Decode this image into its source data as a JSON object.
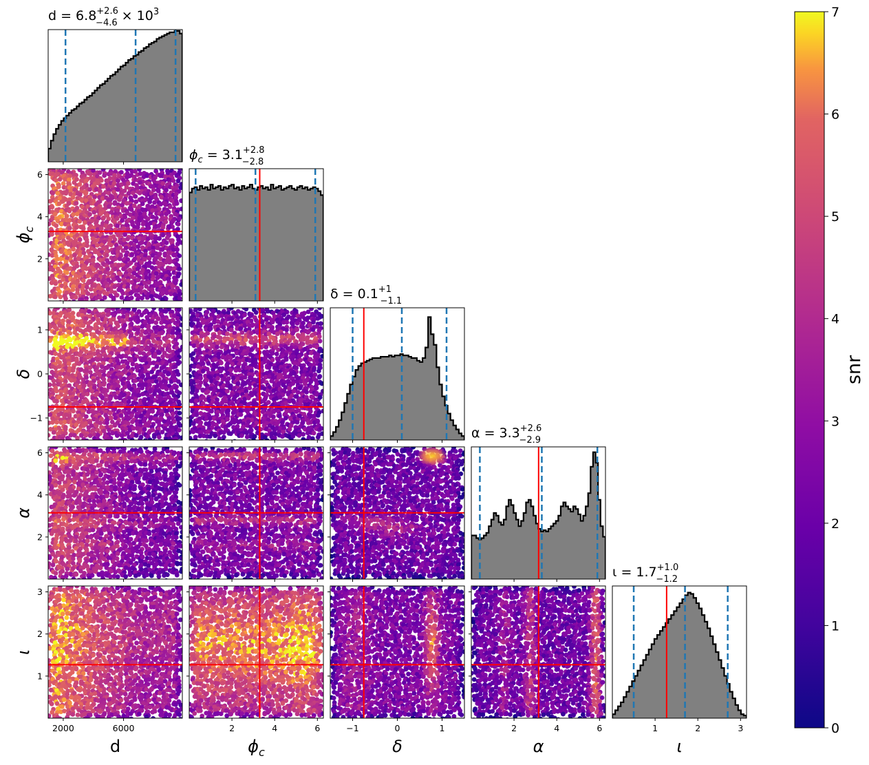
{
  "chart_data": {
    "type": "corner",
    "colorbar": {
      "label": "snr",
      "range": [
        0,
        7
      ],
      "ticks": [
        0,
        1,
        2,
        3,
        4,
        5,
        6,
        7
      ],
      "colormap": "plasma"
    },
    "parameters": [
      {
        "key": "d",
        "label": "d",
        "range": [
          1000,
          9900
        ],
        "ticks": [
          2000,
          6000
        ],
        "tick_labels": [
          "2000",
          "6000"
        ],
        "truth": null,
        "quantiles": [
          2150,
          6800,
          9450
        ],
        "title_main": "d = 6.8",
        "title_sup": "+2.6",
        "title_sub": "−4.6",
        "title_suffix": " × 10",
        "title_exp": "3"
      },
      {
        "key": "phi_c",
        "label": "ϕc",
        "label_main": "ϕ",
        "label_sub": "c",
        "range": [
          0,
          6.28
        ],
        "ticks": [
          2,
          4,
          6
        ],
        "tick_labels": [
          "2",
          "4",
          "6"
        ],
        "truth": 3.3,
        "quantiles": [
          0.3,
          3.1,
          5.9
        ],
        "title_main": "ϕ",
        "title_main_sub": "c",
        "title_value": " = 3.1",
        "title_sup": "+2.8",
        "title_sub": "−2.8"
      },
      {
        "key": "delta",
        "label": "δ",
        "range": [
          -1.5,
          1.5
        ],
        "ticks": [
          -1,
          0,
          1
        ],
        "tick_labels": [
          "−1",
          "0",
          "1"
        ],
        "truth": -0.75,
        "quantiles": [
          -1.0,
          0.1,
          1.1
        ],
        "title_main": "δ = 0.1",
        "title_sup": "+1",
        "title_sub": "−1.1"
      },
      {
        "key": "alpha",
        "label": "α",
        "range": [
          0,
          6.28
        ],
        "ticks": [
          2,
          4,
          6
        ],
        "tick_labels": [
          "2",
          "4",
          "6"
        ],
        "truth": 3.15,
        "quantiles": [
          0.4,
          3.3,
          5.9
        ],
        "title_main": "α = 3.3",
        "title_sup": "+2.6",
        "title_sub": "−2.9"
      },
      {
        "key": "iota",
        "label": "ι",
        "range": [
          0,
          3.14
        ],
        "ticks": [
          1,
          2,
          3
        ],
        "tick_labels": [
          "1",
          "2",
          "3"
        ],
        "truth": 1.27,
        "quantiles": [
          0.5,
          1.7,
          2.7
        ],
        "title_main": "ι = 1.7",
        "title_sup": "+1.0",
        "title_sub": "−1.2"
      }
    ],
    "marginal_histograms": {
      "d": [
        0.1,
        0.16,
        0.21,
        0.25,
        0.28,
        0.31,
        0.33,
        0.35,
        0.37,
        0.39,
        0.4,
        0.42,
        0.44,
        0.45,
        0.47,
        0.49,
        0.5,
        0.52,
        0.54,
        0.56,
        0.58,
        0.59,
        0.61,
        0.63,
        0.65,
        0.66,
        0.68,
        0.7,
        0.72,
        0.73,
        0.75,
        0.77,
        0.78,
        0.8,
        0.81,
        0.83,
        0.84,
        0.86,
        0.87,
        0.89,
        0.9,
        0.91,
        0.93,
        0.94,
        0.95,
        0.96,
        0.97,
        0.98,
        0.98,
        0.99,
        0.99,
        0.97
      ],
      "phi_c": [
        0.82,
        0.85,
        0.86,
        0.84,
        0.87,
        0.85,
        0.86,
        0.84,
        0.88,
        0.85,
        0.86,
        0.87,
        0.84,
        0.86,
        0.85,
        0.87,
        0.88,
        0.85,
        0.86,
        0.84,
        0.87,
        0.85,
        0.86,
        0.88,
        0.85,
        0.84,
        0.86,
        0.87,
        0.85,
        0.86,
        0.84,
        0.88,
        0.85,
        0.86,
        0.87,
        0.84,
        0.85,
        0.86,
        0.87,
        0.85,
        0.84,
        0.86,
        0.87,
        0.85,
        0.86,
        0.84,
        0.85,
        0.86,
        0.85,
        0.83,
        0.8
      ],
      "delta": [
        0.03,
        0.06,
        0.1,
        0.15,
        0.21,
        0.28,
        0.35,
        0.42,
        0.48,
        0.53,
        0.56,
        0.58,
        0.59,
        0.6,
        0.61,
        0.62,
        0.62,
        0.62,
        0.63,
        0.63,
        0.63,
        0.64,
        0.63,
        0.64,
        0.64,
        0.65,
        0.64,
        0.64,
        0.63,
        0.62,
        0.62,
        0.6,
        0.59,
        0.62,
        0.7,
        0.93,
        0.8,
        0.72,
        0.55,
        0.42,
        0.33,
        0.26,
        0.2,
        0.15,
        0.11,
        0.08,
        0.05,
        0.03
      ],
      "alpha": [
        0.33,
        0.33,
        0.31,
        0.3,
        0.31,
        0.33,
        0.35,
        0.4,
        0.45,
        0.5,
        0.48,
        0.43,
        0.41,
        0.45,
        0.55,
        0.6,
        0.56,
        0.5,
        0.45,
        0.4,
        0.44,
        0.5,
        0.58,
        0.6,
        0.55,
        0.48,
        0.42,
        0.38,
        0.36,
        0.37,
        0.36,
        0.38,
        0.4,
        0.42,
        0.44,
        0.48,
        0.55,
        0.58,
        0.55,
        0.53,
        0.51,
        0.55,
        0.53,
        0.49,
        0.44,
        0.48,
        0.55,
        0.65,
        0.85,
        0.96,
        0.88,
        0.6,
        0.4,
        0.32
      ],
      "iota": [
        0.03,
        0.06,
        0.09,
        0.12,
        0.16,
        0.2,
        0.24,
        0.28,
        0.32,
        0.36,
        0.4,
        0.44,
        0.48,
        0.52,
        0.56,
        0.6,
        0.63,
        0.66,
        0.69,
        0.72,
        0.75,
        0.78,
        0.81,
        0.84,
        0.87,
        0.9,
        0.93,
        0.95,
        0.94,
        0.91,
        0.87,
        0.83,
        0.78,
        0.73,
        0.68,
        0.62,
        0.56,
        0.5,
        0.44,
        0.38,
        0.32,
        0.26,
        0.2,
        0.15,
        0.1,
        0.06,
        0.03,
        0.02
      ]
    }
  }
}
